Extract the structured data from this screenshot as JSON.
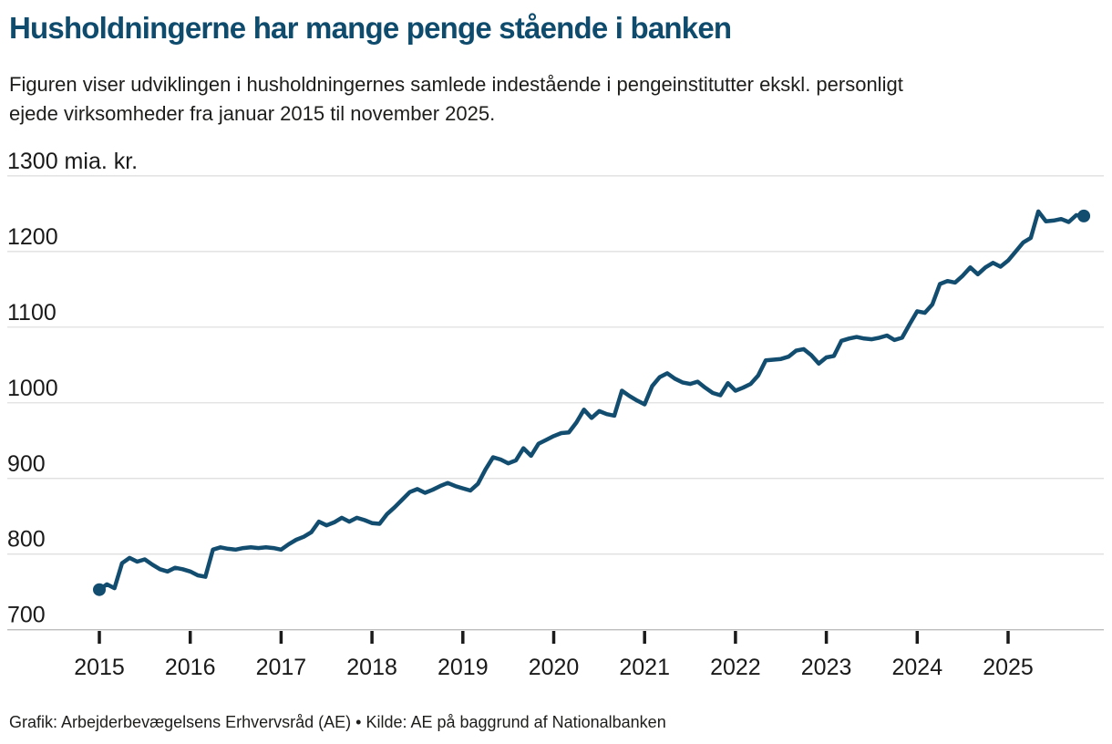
{
  "header": {
    "title": "Husholdningerne har mange penge stående i banken",
    "subtitle_line1": "Figuren viser udviklingen i husholdningernes samlede indestående i pengeinstitutter ekskl. personligt",
    "subtitle_line2": "ejede virksomheder fra januar 2015 til november 2025."
  },
  "footer": {
    "credit_line": "Grafik: Arbejderbevægelsens Erhvervsråd (AE) • Kilde: AE på baggrund af Nationalbanken"
  },
  "chart_data": {
    "type": "line",
    "title": "Husholdningerne har mange penge stående i banken",
    "unit": "mia. kr.",
    "frequency": "monthly",
    "x_start": "2015-01",
    "x_end": "2025-11",
    "ylim": [
      700,
      1300
    ],
    "grid": true,
    "legend_position": "none",
    "y_ticks": [
      {
        "value": 1300,
        "label": "1300 mia. kr."
      },
      {
        "value": 1200,
        "label": "1200"
      },
      {
        "value": 1100,
        "label": "1100"
      },
      {
        "value": 1000,
        "label": "1000"
      },
      {
        "value": 900,
        "label": "900"
      },
      {
        "value": 800,
        "label": "800"
      },
      {
        "value": 700,
        "label": "700"
      }
    ],
    "x_tick_labels": [
      "2015",
      "2016",
      "2017",
      "2018",
      "2019",
      "2020",
      "2021",
      "2022",
      "2023",
      "2024",
      "2025"
    ],
    "series": [
      {
        "name": "Husholdningernes samlede indestående i pengeinstitutter (mia. kr.)",
        "values": [
          753,
          760,
          755,
          788,
          795,
          790,
          793,
          786,
          780,
          777,
          782,
          780,
          777,
          772,
          770,
          806,
          809,
          807,
          806,
          808,
          809,
          808,
          809,
          808,
          806,
          813,
          819,
          823,
          829,
          843,
          838,
          842,
          848,
          843,
          848,
          845,
          841,
          840,
          853,
          862,
          872,
          882,
          886,
          881,
          885,
          890,
          894,
          890,
          887,
          884,
          893,
          912,
          928,
          925,
          920,
          924,
          940,
          930,
          946,
          951,
          956,
          960,
          961,
          974,
          991,
          980,
          989,
          985,
          983,
          1016,
          1009,
          1003,
          998,
          1022,
          1034,
          1039,
          1032,
          1027,
          1025,
          1028,
          1020,
          1013,
          1010,
          1026,
          1016,
          1020,
          1025,
          1036,
          1056,
          1057,
          1058,
          1061,
          1069,
          1071,
          1063,
          1052,
          1060,
          1062,
          1082,
          1085,
          1087,
          1085,
          1084,
          1086,
          1089,
          1083,
          1086,
          1104,
          1121,
          1119,
          1130,
          1157,
          1161,
          1159,
          1168,
          1179,
          1170,
          1179,
          1185,
          1180,
          1188,
          1200,
          1212,
          1218,
          1253,
          1240,
          1241,
          1243,
          1239,
          1248,
          1247
        ]
      }
    ],
    "start_point": {
      "date": "2015-01",
      "value": 753
    },
    "end_point": {
      "date": "2025-11",
      "value": 1247
    },
    "colors": {
      "line": "#124d70",
      "title": "#0e4b6d",
      "grid": "#dcdcdc",
      "axis": "#bdbdbd",
      "tick": "#1a1a1a",
      "text": "#1d1d1b"
    }
  }
}
